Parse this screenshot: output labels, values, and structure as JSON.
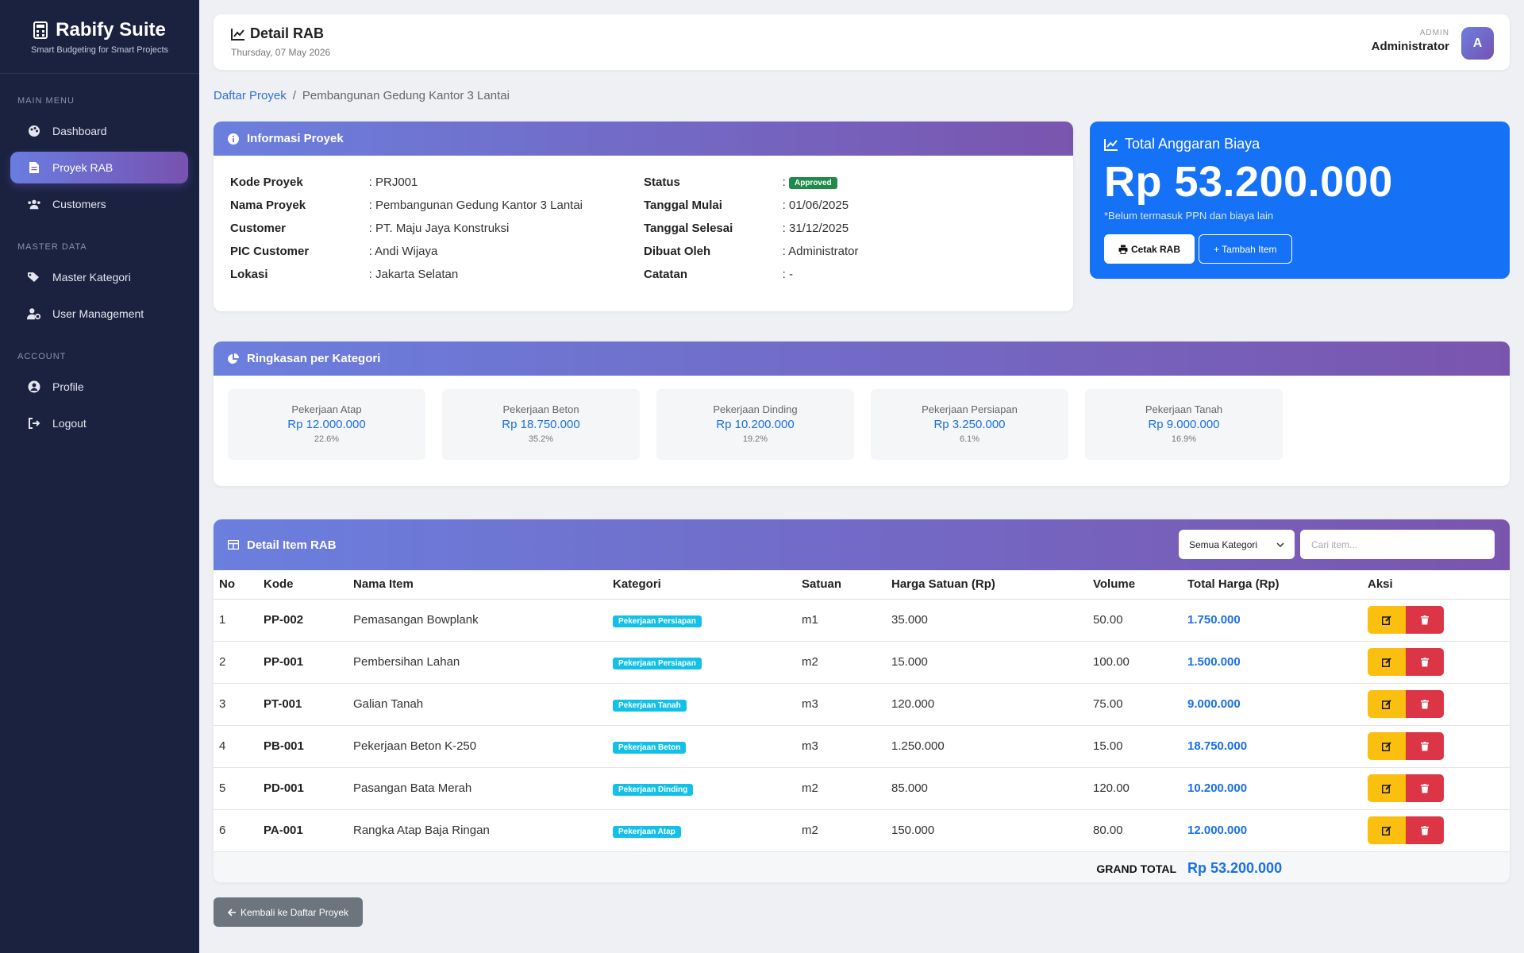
{
  "brand": {
    "title": "Rabify Suite",
    "subtitle": "Smart Budgeting for Smart Projects"
  },
  "sidebar": {
    "sections": [
      {
        "heading": "MAIN MENU",
        "items": [
          {
            "label": "Dashboard",
            "icon": "palette-icon",
            "active": false
          },
          {
            "label": "Proyek RAB",
            "icon": "file-icon",
            "active": true
          },
          {
            "label": "Customers",
            "icon": "users-icon",
            "active": false
          }
        ]
      },
      {
        "heading": "MASTER DATA",
        "items": [
          {
            "label": "Master Kategori",
            "icon": "tags-icon",
            "active": false
          },
          {
            "label": "User Management",
            "icon": "user-gear-icon",
            "active": false
          }
        ]
      },
      {
        "heading": "ACCOUNT",
        "items": [
          {
            "label": "Profile",
            "icon": "user-circle-icon",
            "active": false
          },
          {
            "label": "Logout",
            "icon": "logout-icon",
            "active": false
          }
        ]
      }
    ]
  },
  "topbar": {
    "title": "Detail RAB",
    "date": "Thursday, 07 May 2026",
    "role": "ADMIN",
    "user": "Administrator",
    "avatar": "A"
  },
  "breadcrumb": {
    "link": "Daftar Proyek",
    "separator": "/",
    "current": "Pembangunan Gedung Kantor 3 Lantai"
  },
  "info": {
    "title": "Informasi Proyek",
    "rows": [
      {
        "l1": "Kode Proyek",
        "v1": ": PRJ001",
        "l2": "Status",
        "v2": "Approved"
      },
      {
        "l1": "Nama Proyek",
        "v1": ": Pembangunan Gedung Kantor 3 Lantai",
        "l2": "Tanggal Mulai",
        "v2": ": 01/06/2025"
      },
      {
        "l1": "Customer",
        "v1": ": PT. Maju Jaya Konstruksi",
        "l2": "Tanggal Selesai",
        "v2": ": 31/12/2025"
      },
      {
        "l1": "PIC Customer",
        "v1": ": Andi Wijaya",
        "l2": "Dibuat Oleh",
        "v2": ": Administrator"
      },
      {
        "l1": "Lokasi",
        "v1": ": Jakarta Selatan",
        "l2": "Catatan",
        "v2": ": -"
      }
    ]
  },
  "total": {
    "title": "Total Anggaran Biaya",
    "amount": "Rp 53.200.000",
    "note": "*Belum termasuk PPN dan biaya lain",
    "print_label": "Cetak RAB",
    "add_label": "+ Tambah Item"
  },
  "summary": {
    "title": "Ringkasan per Kategori",
    "items": [
      {
        "name": "Pekerjaan Atap",
        "value": "Rp 12.000.000",
        "pct": "22.6%"
      },
      {
        "name": "Pekerjaan Beton",
        "value": "Rp 18.750.000",
        "pct": "35.2%"
      },
      {
        "name": "Pekerjaan Dinding",
        "value": "Rp 10.200.000",
        "pct": "19.2%"
      },
      {
        "name": "Pekerjaan Persiapan",
        "value": "Rp 3.250.000",
        "pct": "6.1%"
      },
      {
        "name": "Pekerjaan Tanah",
        "value": "Rp 9.000.000",
        "pct": "16.9%"
      }
    ]
  },
  "table": {
    "title": "Detail Item RAB",
    "filter_value": "Semua Kategori",
    "search_placeholder": "Cari item...",
    "columns": [
      "No",
      "Kode",
      "Nama Item",
      "Kategori",
      "Satuan",
      "Harga Satuan (Rp)",
      "Volume",
      "Total Harga (Rp)",
      "Aksi"
    ],
    "rows": [
      {
        "no": "1",
        "code": "PP-002",
        "name": "Pemasangan Bowplank",
        "category": "Pekerjaan Persiapan",
        "unit": "m1",
        "price": "35.000",
        "volume": "50.00",
        "total": "1.750.000"
      },
      {
        "no": "2",
        "code": "PP-001",
        "name": "Pembersihan Lahan",
        "category": "Pekerjaan Persiapan",
        "unit": "m2",
        "price": "15.000",
        "volume": "100.00",
        "total": "1.500.000"
      },
      {
        "no": "3",
        "code": "PT-001",
        "name": "Galian Tanah",
        "category": "Pekerjaan Tanah",
        "unit": "m3",
        "price": "120.000",
        "volume": "75.00",
        "total": "9.000.000"
      },
      {
        "no": "4",
        "code": "PB-001",
        "name": "Pekerjaan Beton K-250",
        "category": "Pekerjaan Beton",
        "unit": "m3",
        "price": "1.250.000",
        "volume": "15.00",
        "total": "18.750.000"
      },
      {
        "no": "5",
        "code": "PD-001",
        "name": "Pasangan Bata Merah",
        "category": "Pekerjaan Dinding",
        "unit": "m2",
        "price": "85.000",
        "volume": "120.00",
        "total": "10.200.000"
      },
      {
        "no": "6",
        "code": "PA-001",
        "name": "Rangka Atap Baja Ringan",
        "category": "Pekerjaan Atap",
        "unit": "m2",
        "price": "150.000",
        "volume": "80.00",
        "total": "12.000.000"
      }
    ],
    "grand_label": "GRAND TOTAL",
    "grand_value": "Rp 53.200.000"
  },
  "back_label": "Kembali ke Daftar Proyek",
  "colors": {
    "accent": "#1571f5",
    "gradient_start": "#6b7fde",
    "gradient_end": "#7a55ae",
    "sidebar": "#1b2240",
    "badge": "#13c1e8",
    "edit": "#fbbf0f",
    "delete": "#dc3545"
  }
}
